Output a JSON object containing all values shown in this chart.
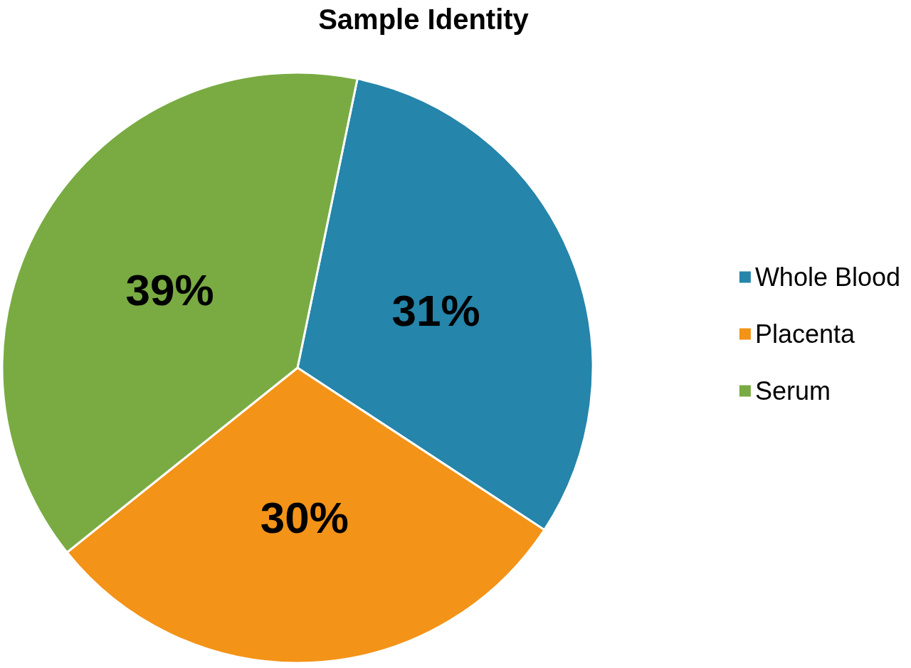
{
  "chart_data": {
    "type": "pie",
    "title": "Sample Identity",
    "categories": [
      "Whole Blood",
      "Placenta",
      "Serum"
    ],
    "values": [
      31,
      30,
      39
    ],
    "value_labels": [
      "31%",
      "30%",
      "39%"
    ],
    "colors": [
      "#2585aa",
      "#f39317",
      "#79ab42"
    ],
    "legend": "right"
  }
}
